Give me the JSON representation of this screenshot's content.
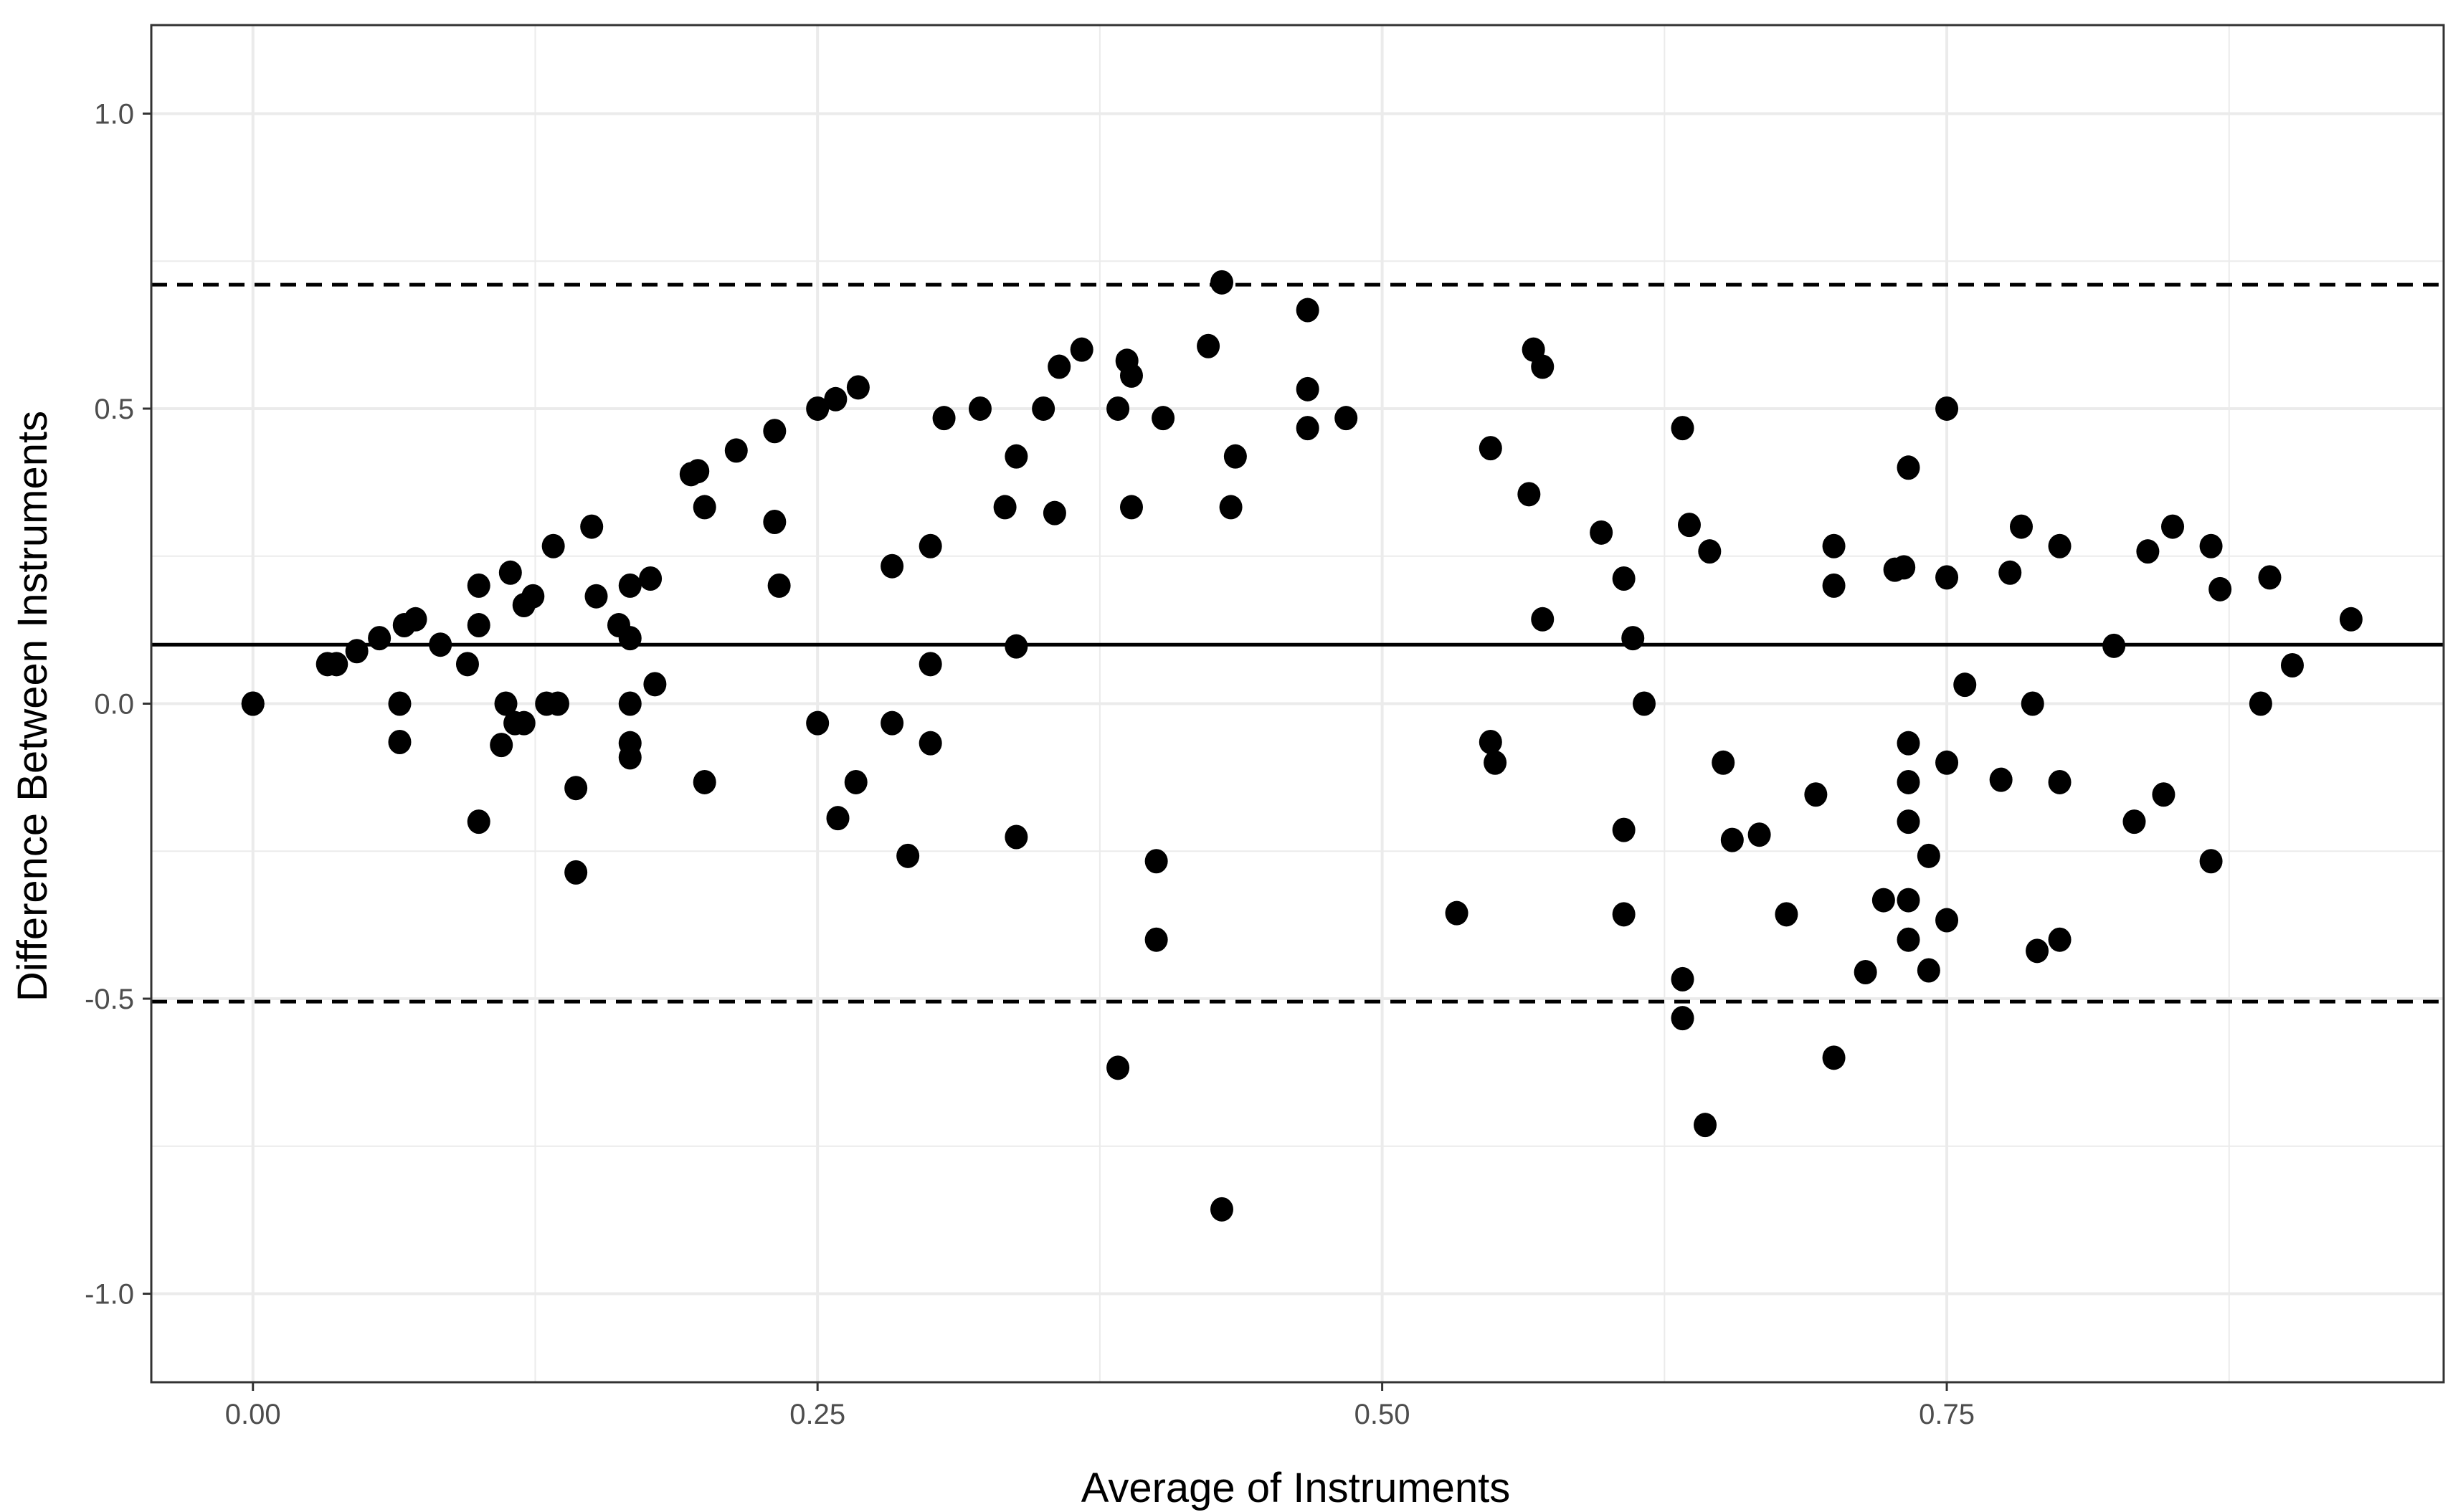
{
  "chart_data": {
    "type": "scatter",
    "title": "",
    "xlabel": "Average of Instruments",
    "ylabel": "Difference Between Instruments",
    "xlim": [
      -0.045,
      0.97
    ],
    "ylim": [
      -1.15,
      1.15
    ],
    "x_ticks": [
      0.0,
      0.25,
      0.5,
      0.75
    ],
    "x_tick_labels": [
      "0.00",
      "0.25",
      "0.50",
      "0.75"
    ],
    "y_ticks": [
      -1.0,
      -0.5,
      0.0,
      0.5,
      1.0
    ],
    "y_tick_labels": [
      "-1.0",
      "-0.5",
      "0.0",
      "0.5",
      "1.0"
    ],
    "grid": true,
    "reference_lines": [
      {
        "y": 0.1,
        "style": "solid"
      },
      {
        "y": 0.71,
        "style": "dashed"
      },
      {
        "y": -0.505,
        "style": "dashed"
      }
    ],
    "points": [
      [
        0.0,
        0.0
      ],
      [
        0.0,
        0.0
      ],
      [
        0.033,
        0.067
      ],
      [
        0.037,
        0.067
      ],
      [
        0.046,
        0.089
      ],
      [
        0.056,
        0.111
      ],
      [
        0.067,
        0.133
      ],
      [
        0.072,
        0.143
      ],
      [
        0.083,
        0.1
      ],
      [
        0.065,
        0.0
      ],
      [
        0.065,
        -0.065
      ],
      [
        0.095,
        0.067
      ],
      [
        0.1,
        0.133
      ],
      [
        0.1,
        0.2
      ],
      [
        0.1,
        -0.2
      ],
      [
        0.11,
        -0.07
      ],
      [
        0.112,
        0.0
      ],
      [
        0.114,
        0.222
      ],
      [
        0.116,
        -0.033
      ],
      [
        0.12,
        0.167
      ],
      [
        0.12,
        -0.033
      ],
      [
        0.124,
        0.182
      ],
      [
        0.13,
        0.0
      ],
      [
        0.133,
        0.267
      ],
      [
        0.135,
        0.0
      ],
      [
        0.143,
        -0.143
      ],
      [
        0.143,
        -0.286
      ],
      [
        0.15,
        0.3
      ],
      [
        0.152,
        0.182
      ],
      [
        0.162,
        0.133
      ],
      [
        0.167,
        0.2
      ],
      [
        0.167,
        0.111
      ],
      [
        0.167,
        0.0
      ],
      [
        0.167,
        -0.067
      ],
      [
        0.167,
        -0.091
      ],
      [
        0.176,
        0.212
      ],
      [
        0.178,
        0.033
      ],
      [
        0.194,
        0.389
      ],
      [
        0.197,
        0.394
      ],
      [
        0.2,
        0.333
      ],
      [
        0.2,
        -0.133
      ],
      [
        0.214,
        0.429
      ],
      [
        0.231,
        0.462
      ],
      [
        0.231,
        0.308
      ],
      [
        0.233,
        0.2
      ],
      [
        0.25,
        0.5
      ],
      [
        0.25,
        -0.033
      ],
      [
        0.258,
        0.516
      ],
      [
        0.259,
        -0.194
      ],
      [
        0.268,
        0.536
      ],
      [
        0.267,
        -0.133
      ],
      [
        0.283,
        0.233
      ],
      [
        0.283,
        -0.033
      ],
      [
        0.29,
        -0.258
      ],
      [
        0.3,
        0.267
      ],
      [
        0.3,
        0.067
      ],
      [
        0.3,
        -0.067
      ],
      [
        0.306,
        0.484
      ],
      [
        0.322,
        0.5
      ],
      [
        0.333,
        0.333
      ],
      [
        0.338,
        0.419
      ],
      [
        0.338,
        0.097
      ],
      [
        0.338,
        -0.226
      ],
      [
        0.35,
        0.5
      ],
      [
        0.355,
        0.323
      ],
      [
        0.357,
        0.571
      ],
      [
        0.367,
        0.6
      ],
      [
        0.383,
        0.5
      ],
      [
        0.387,
        0.581
      ],
      [
        0.389,
        0.556
      ],
      [
        0.389,
        0.333
      ],
      [
        0.383,
        -0.617
      ],
      [
        0.4,
        -0.267
      ],
      [
        0.4,
        -0.4
      ],
      [
        0.403,
        0.484
      ],
      [
        0.423,
        0.606
      ],
      [
        0.429,
        0.714
      ],
      [
        0.429,
        -0.857
      ],
      [
        0.433,
        0.333
      ],
      [
        0.435,
        0.419
      ],
      [
        0.467,
        0.667
      ],
      [
        0.467,
        0.533
      ],
      [
        0.467,
        0.467
      ],
      [
        0.484,
        0.484
      ],
      [
        0.533,
        -0.355
      ],
      [
        0.548,
        0.433
      ],
      [
        0.548,
        -0.065
      ],
      [
        0.55,
        -0.1
      ],
      [
        0.567,
        0.6
      ],
      [
        0.571,
        0.571
      ],
      [
        0.565,
        0.355
      ],
      [
        0.571,
        0.143
      ],
      [
        0.597,
        0.29
      ],
      [
        0.607,
        0.212
      ],
      [
        0.611,
        0.111
      ],
      [
        0.616,
        0.0
      ],
      [
        0.607,
        -0.214
      ],
      [
        0.607,
        -0.357
      ],
      [
        0.633,
        0.467
      ],
      [
        0.636,
        0.303
      ],
      [
        0.645,
        0.258
      ],
      [
        0.651,
        -0.1
      ],
      [
        0.655,
        -0.231
      ],
      [
        0.667,
        -0.222
      ],
      [
        0.633,
        -0.467
      ],
      [
        0.633,
        -0.533
      ],
      [
        0.643,
        -0.714
      ],
      [
        0.679,
        -0.357
      ],
      [
        0.692,
        -0.154
      ],
      [
        0.7,
        0.267
      ],
      [
        0.7,
        0.2
      ],
      [
        0.7,
        -0.6
      ],
      [
        0.714,
        -0.455
      ],
      [
        0.722,
        -0.333
      ],
      [
        0.727,
        0.227
      ],
      [
        0.731,
        0.231
      ],
      [
        0.733,
        0.4
      ],
      [
        0.733,
        -0.067
      ],
      [
        0.733,
        -0.133
      ],
      [
        0.733,
        -0.2
      ],
      [
        0.733,
        -0.333
      ],
      [
        0.733,
        -0.4
      ],
      [
        0.742,
        -0.258
      ],
      [
        0.742,
        -0.452
      ],
      [
        0.75,
        0.5
      ],
      [
        0.75,
        0.214
      ],
      [
        0.75,
        -0.1
      ],
      [
        0.75,
        -0.367
      ],
      [
        0.758,
        0.032
      ],
      [
        0.774,
        -0.129
      ],
      [
        0.778,
        0.222
      ],
      [
        0.783,
        0.3
      ],
      [
        0.788,
        0.0
      ],
      [
        0.79,
        -0.419
      ],
      [
        0.8,
        0.267
      ],
      [
        0.8,
        -0.133
      ],
      [
        0.8,
        -0.4
      ],
      [
        0.824,
        0.098
      ],
      [
        0.833,
        -0.2
      ],
      [
        0.839,
        0.258
      ],
      [
        0.846,
        -0.154
      ],
      [
        0.85,
        0.3
      ],
      [
        0.867,
        0.267
      ],
      [
        0.867,
        -0.267
      ],
      [
        0.871,
        0.194
      ],
      [
        0.889,
        0.0
      ],
      [
        0.893,
        0.214
      ],
      [
        0.903,
        0.065
      ],
      [
        0.929,
        0.143
      ]
    ]
  }
}
